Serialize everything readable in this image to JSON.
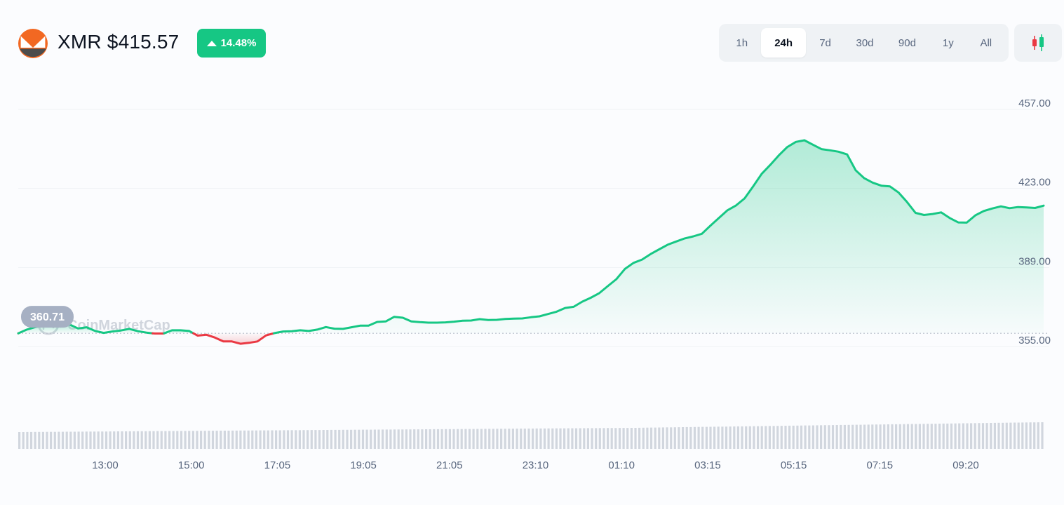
{
  "header": {
    "title": "XMR $415.57",
    "change_pct": "14.48%",
    "change_color": "#16c784",
    "logo_icon": "monero-logo-icon"
  },
  "range_tabs": [
    {
      "label": "1h",
      "active": false
    },
    {
      "label": "24h",
      "active": true
    },
    {
      "label": "7d",
      "active": false
    },
    {
      "label": "30d",
      "active": false
    },
    {
      "label": "90d",
      "active": false
    },
    {
      "label": "1y",
      "active": false
    },
    {
      "label": "All",
      "active": false
    }
  ],
  "candle_toggle_icon": "candlestick-icon",
  "watermark": "CoinMarketCap",
  "colors": {
    "up": "#16c784",
    "down": "#ea3943",
    "grid": "#eff2f5",
    "axis_text": "#58667e"
  },
  "chart_data": {
    "type": "area",
    "title": "",
    "xlabel": "",
    "ylabel": "",
    "ylim": [
      329.7,
      461.2
    ],
    "y_ticks": [
      "457.00",
      "423.00",
      "389.00",
      "355.00"
    ],
    "x_ticks": [
      "13:00",
      "15:00",
      "17:05",
      "19:05",
      "21:05",
      "23:10",
      "01:10",
      "03:15",
      "05:15",
      "07:15",
      "09:20"
    ],
    "open_price": "360.71",
    "reference_price": 360.71,
    "up_color": "#16c784",
    "down_color": "#ea3943",
    "grid": true,
    "x": [
      "12:05",
      "12:17",
      "12:29",
      "12:41",
      "12:53",
      "13:05",
      "13:17",
      "13:29",
      "13:41",
      "13:53",
      "14:05",
      "14:17",
      "14:29",
      "14:41",
      "14:53",
      "15:05",
      "15:17",
      "15:29",
      "15:41",
      "15:53",
      "16:05",
      "16:17",
      "16:29",
      "16:41",
      "16:53",
      "17:05",
      "17:17",
      "17:29",
      "17:41",
      "17:53",
      "18:05",
      "18:17",
      "18:29",
      "18:41",
      "18:53",
      "19:05",
      "19:17",
      "19:29",
      "19:41",
      "19:53",
      "20:05",
      "20:17",
      "20:29",
      "20:41",
      "20:53",
      "21:05",
      "21:17",
      "21:29",
      "21:41",
      "21:53",
      "22:05",
      "22:17",
      "22:29",
      "22:41",
      "22:53",
      "23:05",
      "23:17",
      "23:29",
      "23:41",
      "23:53",
      "00:05",
      "00:17",
      "00:29",
      "00:41",
      "00:53",
      "01:05",
      "01:17",
      "01:29",
      "01:41",
      "01:53",
      "02:05",
      "02:17",
      "02:29",
      "02:41",
      "02:53",
      "03:05",
      "03:17",
      "03:29",
      "03:41",
      "03:53",
      "04:05",
      "04:17",
      "04:29",
      "04:41",
      "04:53",
      "05:05",
      "05:17",
      "05:29",
      "05:41",
      "05:53",
      "06:05",
      "06:17",
      "06:29",
      "06:41",
      "06:53",
      "07:05",
      "07:17",
      "07:29",
      "07:41",
      "07:53",
      "08:05",
      "08:17",
      "08:29",
      "08:41",
      "08:53",
      "09:05",
      "09:17",
      "09:29",
      "09:41",
      "09:53",
      "10:05",
      "10:17",
      "10:29",
      "10:41",
      "10:53",
      "11:05",
      "11:17",
      "11:29",
      "11:41",
      "11:53",
      "12:05"
    ],
    "values": [
      360.7,
      362.3,
      363.4,
      364.0,
      364.9,
      363.6,
      364.5,
      362.8,
      363.3,
      361.7,
      360.9,
      361.5,
      361.9,
      362.6,
      361.6,
      361.0,
      360.6,
      360.6,
      362.0,
      362.0,
      361.7,
      359.7,
      360.1,
      358.9,
      357.2,
      357.2,
      356.2,
      356.6,
      357.2,
      359.8,
      360.8,
      361.5,
      361.6,
      362.0,
      361.7,
      362.3,
      363.4,
      362.7,
      362.6,
      363.3,
      364.0,
      364.0,
      365.6,
      365.8,
      367.8,
      367.4,
      365.8,
      365.5,
      365.3,
      365.3,
      365.4,
      365.7,
      366.1,
      366.2,
      366.8,
      366.4,
      366.5,
      366.9,
      367.0,
      367.1,
      367.6,
      368.0,
      369.0,
      370.0,
      371.6,
      372.1,
      374.3,
      376.0,
      378.0,
      381.0,
      384.0,
      388.4,
      391.0,
      392.4,
      394.8,
      396.8,
      398.8,
      400.2,
      401.5,
      402.4,
      403.5,
      407.0,
      410.3,
      413.6,
      415.7,
      418.7,
      423.9,
      429.3,
      433.1,
      437.2,
      440.8,
      443.0,
      443.7,
      441.8,
      439.9,
      439.4,
      438.8,
      437.6,
      430.8,
      427.4,
      425.5,
      424.2,
      423.9,
      421.3,
      417.2,
      412.5,
      411.6,
      412.0,
      412.7,
      410.3,
      408.4,
      408.3,
      411.4,
      413.3,
      414.4,
      415.3,
      414.5,
      415.0,
      414.8,
      414.6,
      415.6
    ]
  },
  "volume": {
    "label": "volume-bars",
    "values": [
      4,
      5,
      6,
      7,
      8,
      9,
      10,
      11,
      12,
      13,
      14,
      15,
      16,
      18,
      20,
      22,
      24,
      26,
      28,
      30,
      32
    ]
  }
}
